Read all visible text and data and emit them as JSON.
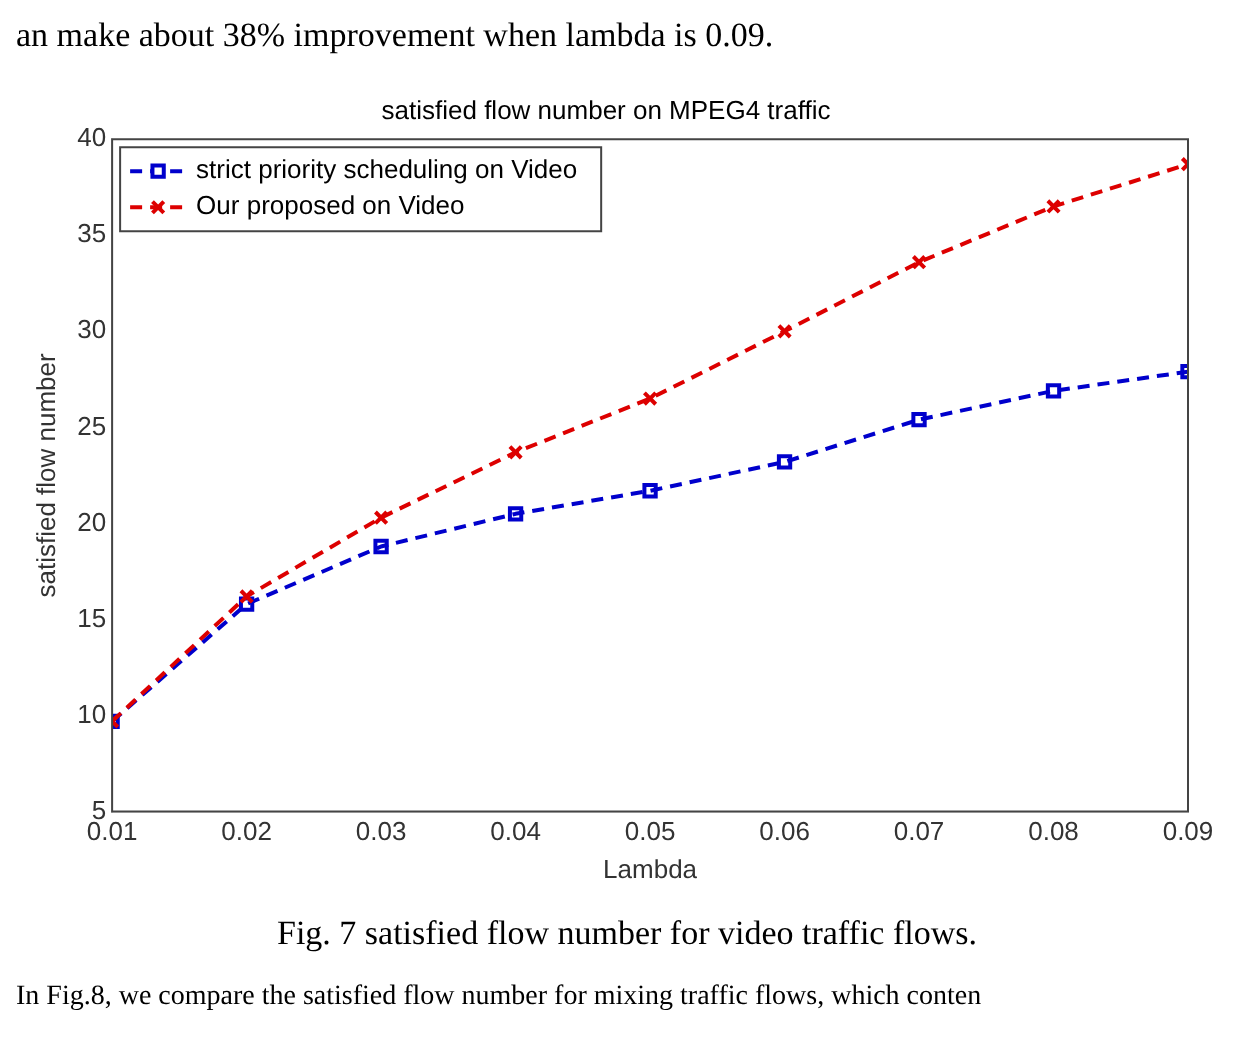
{
  "chart_data": {
    "type": "line",
    "title": "satisfied flow number on MPEG4 traffic",
    "xlabel": "Lambda",
    "ylabel": "satisfied flow number",
    "x": [
      0.01,
      0.02,
      0.03,
      0.04,
      0.05,
      0.06,
      0.07,
      0.08,
      0.09
    ],
    "series": [
      {
        "name": "strict priority scheduling on Video",
        "color": "#0000cc",
        "marker": "square",
        "values": [
          9.7,
          15.8,
          18.8,
          20.5,
          21.7,
          23.2,
          25.4,
          26.9,
          27.9
        ]
      },
      {
        "name": "Our proposed on Video",
        "color": "#dd0000",
        "marker": "cross",
        "values": [
          9.7,
          16.2,
          20.3,
          23.7,
          26.5,
          30.0,
          33.6,
          36.5,
          38.7
        ]
      }
    ],
    "xlim": [
      0.01,
      0.09
    ],
    "xticks": [
      0.01,
      0.02,
      0.03,
      0.04,
      0.05,
      0.06,
      0.07,
      0.08,
      0.09
    ],
    "ylim": [
      5,
      40
    ],
    "yticks": [
      5,
      10,
      15,
      20,
      25,
      30,
      35,
      40
    ],
    "grid": false,
    "legend": "top left",
    "line_style": "dashed",
    "annotations": [
      "an make about 38% improvement when lambda is 0.09.",
      "Fig. 7 satisfied flow number for video traffic flows.",
      "In Fig.8, we compare the satisfied flow number for mixing traffic flows, which conten"
    ]
  }
}
